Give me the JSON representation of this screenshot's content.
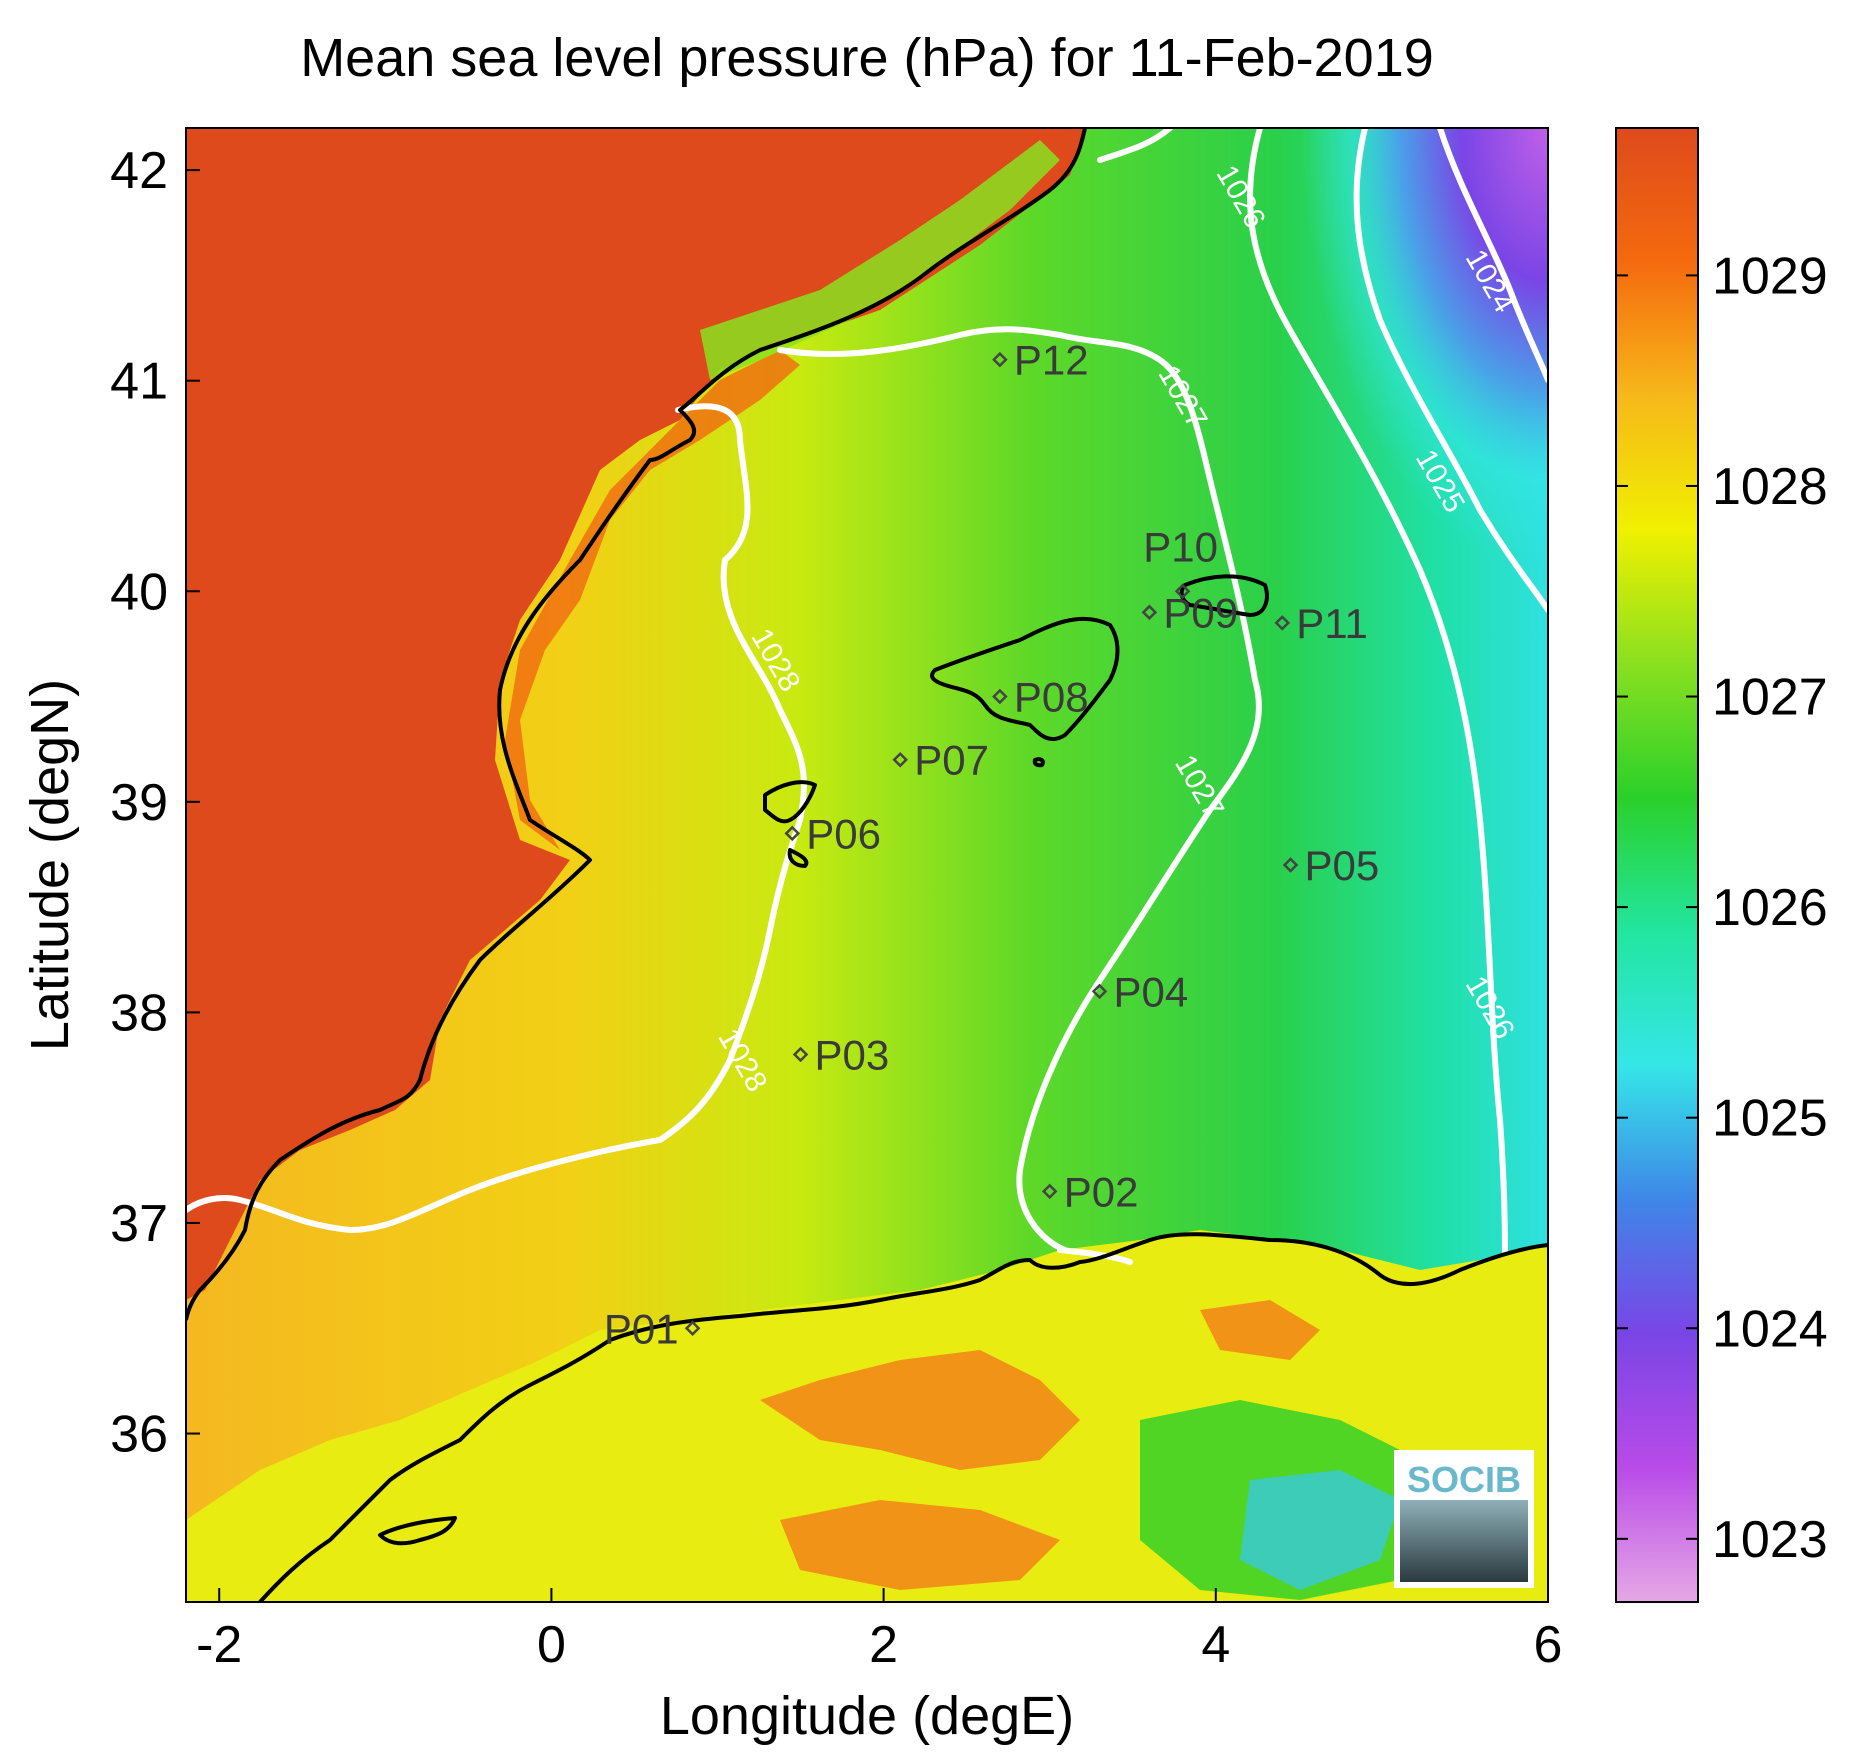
{
  "chart_data": {
    "type": "heatmap",
    "title": "Mean sea level pressure (hPa) for 11-Feb-2019",
    "xlabel": "Longitude (degE)",
    "ylabel": "Latitude (degN)",
    "xlim": [
      -2.2,
      6
    ],
    "ylim": [
      35.2,
      42.2
    ],
    "x_ticks": [
      {
        "value": -2,
        "label": "-2"
      },
      {
        "value": 0,
        "label": "0"
      },
      {
        "value": 2,
        "label": "2"
      },
      {
        "value": 4,
        "label": "4"
      },
      {
        "value": 6,
        "label": "6"
      }
    ],
    "y_ticks": [
      {
        "value": 36,
        "label": "36"
      },
      {
        "value": 37,
        "label": "37"
      },
      {
        "value": 38,
        "label": "38"
      },
      {
        "value": 39,
        "label": "39"
      },
      {
        "value": 40,
        "label": "40"
      },
      {
        "value": 41,
        "label": "41"
      },
      {
        "value": 42,
        "label": "42"
      }
    ],
    "colorbar": {
      "range": [
        1022.7,
        1029.7
      ],
      "ticks": [
        {
          "value": 1023,
          "label": "1023"
        },
        {
          "value": 1024,
          "label": "1024"
        },
        {
          "value": 1025,
          "label": "1025"
        },
        {
          "value": 1026,
          "label": "1026"
        },
        {
          "value": 1027,
          "label": "1027"
        },
        {
          "value": 1028,
          "label": "1028"
        },
        {
          "value": 1029,
          "label": "1029"
        }
      ],
      "stops": [
        "#e6a8e6",
        "#b94be8",
        "#7a45e6",
        "#3f86e8",
        "#35e6e8",
        "#22e6a0",
        "#2ad02a",
        "#8ae020",
        "#f0f000",
        "#f6b81a",
        "#f56a0e",
        "#de4a1c"
      ]
    },
    "contours": [
      {
        "level": 1024,
        "label": "1024",
        "label_positions": [
          {
            "lon": 5.6,
            "lat": 41.45
          }
        ]
      },
      {
        "level": 1025,
        "label": "1025",
        "label_positions": [
          {
            "lon": 5.3,
            "lat": 40.5
          }
        ]
      },
      {
        "level": 1026,
        "label": "1026",
        "label_positions": [
          {
            "lon": 4.1,
            "lat": 41.85
          },
          {
            "lon": 5.6,
            "lat": 38.0
          }
        ]
      },
      {
        "level": 1027,
        "label": "1027",
        "label_positions": [
          {
            "lon": 3.75,
            "lat": 40.9
          },
          {
            "lon": 3.85,
            "lat": 39.05
          }
        ]
      },
      {
        "level": 1028,
        "label": "1028",
        "label_positions": [
          {
            "lon": 1.3,
            "lat": 39.65
          },
          {
            "lon": 1.1,
            "lat": 37.75
          }
        ]
      }
    ],
    "stations": [
      {
        "label": "P01",
        "lon": 0.85,
        "lat": 36.5
      },
      {
        "label": "P02",
        "lon": 3.0,
        "lat": 37.15
      },
      {
        "label": "P03",
        "lon": 1.5,
        "lat": 37.8
      },
      {
        "label": "P04",
        "lon": 3.3,
        "lat": 38.1
      },
      {
        "label": "P05",
        "lon": 4.45,
        "lat": 38.7
      },
      {
        "label": "P06",
        "lon": 1.45,
        "lat": 38.85
      },
      {
        "label": "P07",
        "lon": 2.1,
        "lat": 39.2
      },
      {
        "label": "P08",
        "lon": 2.7,
        "lat": 39.5
      },
      {
        "label": "P09",
        "lon": 3.6,
        "lat": 39.9
      },
      {
        "label": "P10",
        "lon": 3.8,
        "lat": 40.0
      },
      {
        "label": "P11",
        "lon": 4.4,
        "lat": 39.85
      },
      {
        "label": "P12",
        "lon": 2.7,
        "lat": 41.1
      }
    ]
  },
  "logo": {
    "text": "SOCIB"
  },
  "colors": {
    "land_high": "#de4a1c",
    "sea_yellow": "#e8ec10",
    "sea_green": "#2ad02a",
    "sea_cyan": "#35e6e8",
    "sea_purple": "#7a45e6",
    "contour": "#ffffff",
    "coastline": "#000000"
  }
}
